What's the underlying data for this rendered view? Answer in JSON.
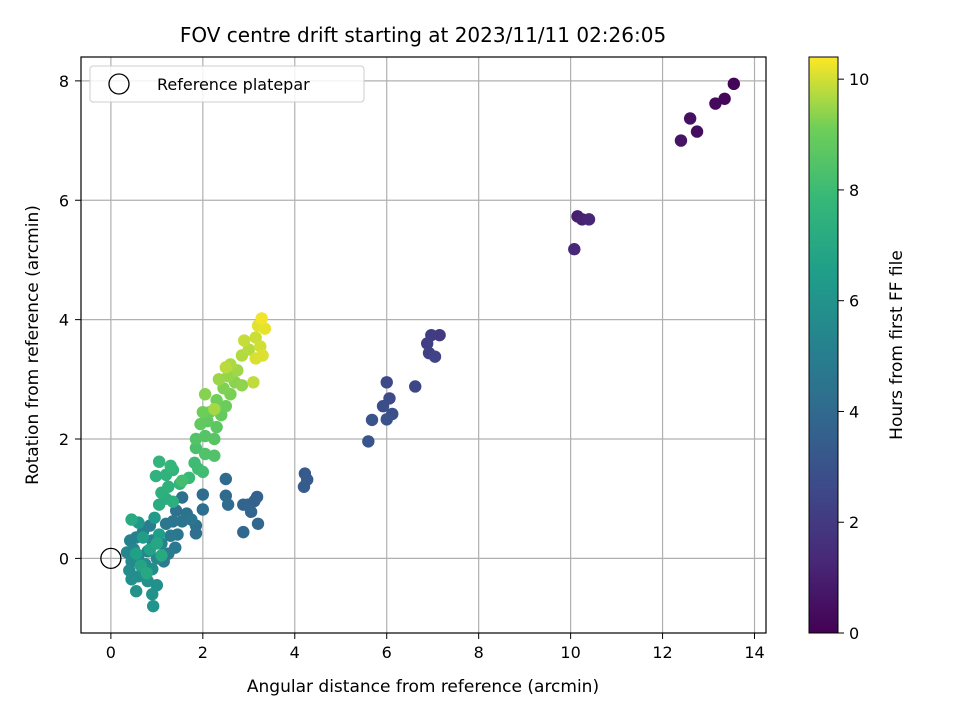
{
  "chart_data": {
    "type": "scatter",
    "title": "FOV centre drift starting at 2023/11/11 02:26:05",
    "xlabel": "Angular distance from reference (arcmin)",
    "ylabel": "Rotation from reference (arcmin)",
    "xlim": [
      -0.65,
      14.25
    ],
    "ylim": [
      -1.25,
      8.4
    ],
    "xticks": [
      0,
      2,
      4,
      6,
      8,
      10,
      12,
      14
    ],
    "yticks": [
      0,
      2,
      4,
      6,
      8
    ],
    "grid": true,
    "legend": {
      "placement": "top-left",
      "entries": [
        "Reference platepar"
      ]
    },
    "reference_point": {
      "x": 0,
      "y": 0
    },
    "colorbar": {
      "label": "Hours from first FF file",
      "colormap": "viridis",
      "min": 0,
      "max": 10.4,
      "ticks": [
        0,
        2,
        4,
        6,
        8,
        10
      ]
    },
    "points": [
      [
        13.55,
        7.95,
        0.1
      ],
      [
        13.35,
        7.7,
        0.2
      ],
      [
        13.15,
        7.62,
        0.3
      ],
      [
        12.75,
        7.15,
        0.4
      ],
      [
        12.6,
        7.37,
        0.5
      ],
      [
        12.4,
        7.0,
        0.6
      ],
      [
        10.15,
        5.73,
        1.0
      ],
      [
        10.25,
        5.68,
        1.1
      ],
      [
        10.4,
        5.68,
        1.2
      ],
      [
        10.08,
        5.18,
        1.3
      ],
      [
        7.15,
        3.74,
        2.0
      ],
      [
        6.97,
        3.74,
        2.1
      ],
      [
        6.88,
        3.6,
        2.2
      ],
      [
        6.92,
        3.44,
        2.3
      ],
      [
        7.05,
        3.38,
        2.4
      ],
      [
        6.62,
        2.88,
        2.5
      ],
      [
        6.0,
        2.95,
        2.6
      ],
      [
        6.06,
        2.68,
        2.7
      ],
      [
        5.92,
        2.55,
        2.8
      ],
      [
        6.12,
        2.42,
        2.9
      ],
      [
        6.0,
        2.33,
        3.0
      ],
      [
        5.68,
        2.32,
        3.05
      ],
      [
        5.6,
        1.96,
        3.1
      ],
      [
        4.22,
        1.42,
        3.3
      ],
      [
        4.27,
        1.32,
        3.35
      ],
      [
        4.2,
        1.2,
        3.4
      ],
      [
        3.18,
        1.03,
        3.6
      ],
      [
        3.12,
        0.96,
        3.65
      ],
      [
        2.98,
        0.9,
        3.7
      ],
      [
        2.88,
        0.9,
        3.75
      ],
      [
        3.05,
        0.78,
        3.8
      ],
      [
        3.2,
        0.58,
        3.85
      ],
      [
        2.88,
        0.44,
        3.9
      ],
      [
        2.5,
        1.33,
        4.0
      ],
      [
        2.5,
        1.05,
        4.05
      ],
      [
        2.55,
        0.9,
        4.1
      ],
      [
        2.0,
        1.07,
        4.15
      ],
      [
        2.0,
        0.82,
        4.2
      ],
      [
        1.85,
        0.55,
        4.25
      ],
      [
        1.85,
        0.42,
        4.3
      ],
      [
        1.55,
        1.02,
        4.35
      ],
      [
        1.42,
        0.8,
        4.4
      ],
      [
        1.65,
        0.75,
        4.45
      ],
      [
        1.55,
        0.62,
        4.5
      ],
      [
        1.75,
        0.65,
        4.55
      ],
      [
        1.35,
        0.62,
        4.6
      ],
      [
        1.2,
        0.58,
        4.65
      ],
      [
        1.45,
        0.4,
        4.7
      ],
      [
        1.3,
        0.38,
        4.75
      ],
      [
        1.4,
        0.18,
        4.8
      ],
      [
        1.25,
        0.08,
        4.85
      ],
      [
        1.15,
        -0.05,
        4.9
      ],
      [
        0.85,
        0.55,
        5.0
      ],
      [
        0.7,
        0.45,
        5.05
      ],
      [
        0.55,
        0.35,
        5.1
      ],
      [
        0.42,
        0.3,
        5.15
      ],
      [
        0.9,
        0.3,
        5.2
      ],
      [
        1.1,
        0.25,
        5.25
      ],
      [
        0.5,
        0.15,
        5.3
      ],
      [
        0.8,
        0.12,
        5.35
      ],
      [
        0.35,
        0.1,
        5.4
      ],
      [
        0.6,
        0.05,
        5.45
      ],
      [
        1.0,
        0.0,
        5.5
      ],
      [
        0.45,
        -0.05,
        5.55
      ],
      [
        0.75,
        -0.1,
        5.6
      ],
      [
        0.4,
        -0.2,
        5.65
      ],
      [
        0.9,
        -0.18,
        5.7
      ],
      [
        0.6,
        -0.3,
        5.75
      ],
      [
        0.45,
        -0.35,
        5.8
      ],
      [
        0.8,
        -0.38,
        5.85
      ],
      [
        1.0,
        -0.45,
        5.9
      ],
      [
        0.55,
        -0.55,
        5.95
      ],
      [
        0.9,
        -0.6,
        6.0
      ],
      [
        0.92,
        -0.8,
        6.05
      ],
      [
        0.6,
        0.6,
        6.2
      ],
      [
        0.95,
        0.68,
        6.3
      ],
      [
        0.7,
        0.35,
        6.4
      ],
      [
        1.05,
        0.4,
        6.5
      ],
      [
        0.55,
        0.08,
        6.6
      ],
      [
        0.85,
        0.15,
        6.7
      ],
      [
        0.65,
        -0.12,
        6.8
      ],
      [
        1.0,
        0.25,
        6.9
      ],
      [
        0.78,
        -0.25,
        7.0
      ],
      [
        1.1,
        0.05,
        7.05
      ],
      [
        0.45,
        0.65,
        7.1
      ],
      [
        1.05,
        0.9,
        7.2
      ],
      [
        1.2,
        1.0,
        7.3
      ],
      [
        1.35,
        0.95,
        7.35
      ],
      [
        1.1,
        1.1,
        7.4
      ],
      [
        1.25,
        1.2,
        7.45
      ],
      [
        0.98,
        1.38,
        7.5
      ],
      [
        1.2,
        1.4,
        7.55
      ],
      [
        1.35,
        1.48,
        7.6
      ],
      [
        1.05,
        1.62,
        7.65
      ],
      [
        1.5,
        1.25,
        7.7
      ],
      [
        1.3,
        1.55,
        7.75
      ],
      [
        1.7,
        1.35,
        7.9
      ],
      [
        1.9,
        1.5,
        8.0
      ],
      [
        1.82,
        1.6,
        8.05
      ],
      [
        2.0,
        1.45,
        8.1
      ],
      [
        1.55,
        1.3,
        8.15
      ],
      [
        1.85,
        1.85,
        8.3
      ],
      [
        2.05,
        1.75,
        8.4
      ],
      [
        2.25,
        1.72,
        8.45
      ],
      [
        1.85,
        2.0,
        8.5
      ],
      [
        2.05,
        2.05,
        8.55
      ],
      [
        2.25,
        2.0,
        8.6
      ],
      [
        2.3,
        2.2,
        8.7
      ],
      [
        2.1,
        2.3,
        8.75
      ],
      [
        1.95,
        2.25,
        8.8
      ],
      [
        2.4,
        2.4,
        8.9
      ],
      [
        2.15,
        2.45,
        8.95
      ],
      [
        2.5,
        2.55,
        9.0
      ],
      [
        2.0,
        2.45,
        9.05
      ],
      [
        2.3,
        2.65,
        9.1
      ],
      [
        2.6,
        2.75,
        9.2
      ],
      [
        2.45,
        2.85,
        9.25
      ],
      [
        2.05,
        2.75,
        9.3
      ],
      [
        2.7,
        2.95,
        9.35
      ],
      [
        2.85,
        2.9,
        9.4
      ],
      [
        2.55,
        3.05,
        9.45
      ],
      [
        2.35,
        3.0,
        9.5
      ],
      [
        2.75,
        3.15,
        9.55
      ],
      [
        2.25,
        2.5,
        9.6
      ],
      [
        2.6,
        3.25,
        9.65
      ],
      [
        2.85,
        3.4,
        9.7
      ],
      [
        3.0,
        3.5,
        9.75
      ],
      [
        2.5,
        3.2,
        9.8
      ],
      [
        3.1,
        2.95,
        9.85
      ],
      [
        2.9,
        3.65,
        9.9
      ],
      [
        3.15,
        3.7,
        9.95
      ],
      [
        3.25,
        3.55,
        10.0
      ],
      [
        3.15,
        3.35,
        10.05
      ],
      [
        3.3,
        3.4,
        10.1
      ],
      [
        3.2,
        3.9,
        10.15
      ],
      [
        3.35,
        3.85,
        10.2
      ],
      [
        3.28,
        4.02,
        10.3
      ]
    ]
  }
}
